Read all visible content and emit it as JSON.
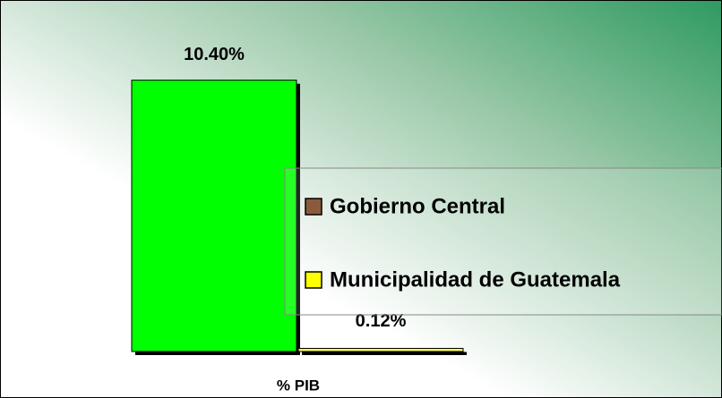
{
  "chart_data": {
    "type": "bar",
    "categories": [
      "% PIB"
    ],
    "series": [
      {
        "name": "Gobierno Central",
        "color": "#00ff00",
        "legend_color": "#8b5a3c",
        "values": [
          10.4
        ],
        "value_labels": [
          "10.40%"
        ]
      },
      {
        "name": "Municipalidad de Guatemala",
        "color": "#ffff66",
        "legend_color": "#ffff00",
        "values": [
          0.12
        ],
        "value_labels": [
          "0.12%"
        ]
      }
    ],
    "ylim": [
      0,
      12
    ]
  }
}
